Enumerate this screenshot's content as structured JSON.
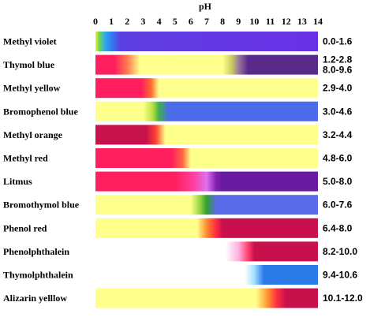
{
  "chart_data": {
    "type": "bar",
    "title": "pH",
    "xlabel": "pH",
    "xlim": [
      0,
      14
    ],
    "ticks": [
      "0",
      "1",
      "2",
      "3",
      "4",
      "5",
      "6",
      "7",
      "8",
      "9",
      "10",
      "11",
      "12",
      "13",
      "14"
    ],
    "indicators": [
      {
        "name": "Methyl violet",
        "range": "0.0-1.6",
        "start": 0,
        "end": 14,
        "stops": [
          [
            0,
            "#f7e63a"
          ],
          [
            0.25,
            "#66d94a"
          ],
          [
            0.6,
            "#33a8f0"
          ],
          [
            1.0,
            "#2f7df2"
          ],
          [
            1.6,
            "#5c3fe0"
          ],
          [
            14,
            "#6a30e6"
          ]
        ]
      },
      {
        "name": "Thymol blue",
        "range": "1.2-2.8\n8.0-9.6",
        "start": 0,
        "end": 14,
        "stops": [
          [
            0,
            "#ff1f5e"
          ],
          [
            1.2,
            "#ff1f5e"
          ],
          [
            2.0,
            "#ff7a50"
          ],
          [
            2.8,
            "#ffff8c"
          ],
          [
            8.0,
            "#ffff8c"
          ],
          [
            8.6,
            "#c8c860"
          ],
          [
            9.0,
            "#9a7a9a"
          ],
          [
            9.6,
            "#5a2a8a"
          ],
          [
            14,
            "#5a2a8a"
          ]
        ]
      },
      {
        "name": "Methyl yellow",
        "range": "2.9-4.0",
        "start": 0,
        "end": 14,
        "stops": [
          [
            0,
            "#ff1f5e"
          ],
          [
            2.9,
            "#ff1f5e"
          ],
          [
            3.5,
            "#ff6a30"
          ],
          [
            4.0,
            "#ffff8c"
          ],
          [
            14,
            "#ffff8c"
          ]
        ]
      },
      {
        "name": "Bromophenol blue",
        "range": "3.0-4.6",
        "start": 0,
        "end": 14,
        "stops": [
          [
            0,
            "#ffff8c"
          ],
          [
            3.0,
            "#ffff8c"
          ],
          [
            3.6,
            "#b8e040"
          ],
          [
            4.0,
            "#40b050"
          ],
          [
            4.6,
            "#4b6bea"
          ],
          [
            14,
            "#4b6bea"
          ]
        ]
      },
      {
        "name": "Methyl orange",
        "range": "3.2-4.4",
        "start": 0,
        "end": 14,
        "stops": [
          [
            0,
            "#c8124c"
          ],
          [
            3.2,
            "#c8124c"
          ],
          [
            3.8,
            "#ff4030"
          ],
          [
            4.4,
            "#ffff8c"
          ],
          [
            14,
            "#ffff8c"
          ]
        ]
      },
      {
        "name": "Methyl red",
        "range": "4.8-6.0",
        "start": 0,
        "end": 14,
        "stops": [
          [
            0,
            "#ff1f5e"
          ],
          [
            4.8,
            "#ff1f5e"
          ],
          [
            5.5,
            "#ff6a40"
          ],
          [
            6.0,
            "#ffff8c"
          ],
          [
            14,
            "#ffff8c"
          ]
        ]
      },
      {
        "name": "Litmus",
        "range": "5.0-8.0",
        "start": 0,
        "end": 14,
        "stops": [
          [
            0,
            "#ff1f5e"
          ],
          [
            5.0,
            "#ff1f5e"
          ],
          [
            6.2,
            "#ff40a0"
          ],
          [
            7.0,
            "#e070f0"
          ],
          [
            7.6,
            "#8020b0"
          ],
          [
            8.0,
            "#6a1aa0"
          ],
          [
            14,
            "#6a1aa0"
          ]
        ]
      },
      {
        "name": "Bromothymol blue",
        "range": "6.0-7.6",
        "start": 0,
        "end": 14,
        "stops": [
          [
            0,
            "#ffff8c"
          ],
          [
            6.0,
            "#ffff8c"
          ],
          [
            6.6,
            "#90d040"
          ],
          [
            7.0,
            "#30a030"
          ],
          [
            7.6,
            "#5a6ae8"
          ],
          [
            14,
            "#5a6ae8"
          ]
        ]
      },
      {
        "name": "Phenol red",
        "range": "6.4-8.0",
        "start": 0,
        "end": 14,
        "stops": [
          [
            0,
            "#ffff8c"
          ],
          [
            6.4,
            "#ffff8c"
          ],
          [
            7.0,
            "#ff8a30"
          ],
          [
            7.6,
            "#ff2a40"
          ],
          [
            8.0,
            "#c8104c"
          ],
          [
            14,
            "#c8104c"
          ]
        ]
      },
      {
        "name": "Phenolphthalein",
        "range": "8.2-10.0",
        "start": 8.2,
        "end": 14,
        "stops": [
          [
            8.2,
            "#ffffff"
          ],
          [
            9.0,
            "#ffb0e0"
          ],
          [
            9.6,
            "#ff4070"
          ],
          [
            10.0,
            "#c8104c"
          ],
          [
            14,
            "#c8104c"
          ]
        ]
      },
      {
        "name": "Thymolphthalein",
        "range": "9.4-10.6",
        "start": 9.4,
        "end": 14,
        "stops": [
          [
            9.4,
            "#ffffff"
          ],
          [
            10.0,
            "#a0e0ff"
          ],
          [
            10.6,
            "#2a7ae8"
          ],
          [
            14,
            "#2a7ae8"
          ]
        ]
      },
      {
        "name": "Alizarin yelllow",
        "range": "10.1-12.0",
        "start": 0,
        "end": 14,
        "stops": [
          [
            0,
            "#ffff8c"
          ],
          [
            10.1,
            "#ffff8c"
          ],
          [
            10.8,
            "#ff9a30"
          ],
          [
            11.4,
            "#ff3040"
          ],
          [
            12.0,
            "#c8104c"
          ],
          [
            14,
            "#c8104c"
          ]
        ]
      }
    ]
  }
}
